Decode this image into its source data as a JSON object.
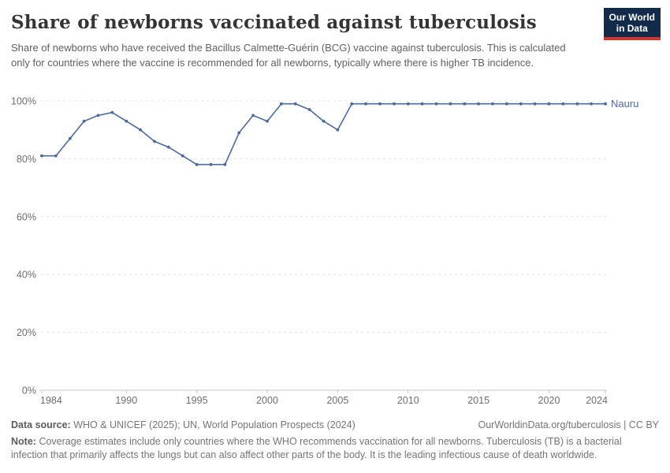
{
  "header": {
    "title": "Share of newborns vaccinated against tuberculosis",
    "subtitle": "Share of newborns who have received the Bacillus Calmette-Guérin (BCG) vaccine against tuberculosis. This is calculated only for countries where the vaccine is recommended for all newborns, typically where there is higher TB incidence.",
    "logo": {
      "line1": "Our World",
      "line2": "in Data",
      "bg_color": "#132b4a",
      "accent_color": "#d8352a"
    }
  },
  "chart_data": {
    "type": "line",
    "title": "Share of newborns vaccinated against tuberculosis",
    "xlabel": "",
    "ylabel": "",
    "xlim": [
      1984,
      2024
    ],
    "ylim": [
      0,
      100
    ],
    "grid": "horizontal-dashed",
    "legend_position": "end-of-line",
    "x_ticks": [
      {
        "value": 1984,
        "label": "1984"
      },
      {
        "value": 1990,
        "label": "1990"
      },
      {
        "value": 1995,
        "label": "1995"
      },
      {
        "value": 2000,
        "label": "2000"
      },
      {
        "value": 2005,
        "label": "2005"
      },
      {
        "value": 2010,
        "label": "2010"
      },
      {
        "value": 2015,
        "label": "2015"
      },
      {
        "value": 2020,
        "label": "2020"
      },
      {
        "value": 2024,
        "label": "2024"
      }
    ],
    "y_ticks": [
      {
        "value": 0,
        "label": "0%"
      },
      {
        "value": 20,
        "label": "20%"
      },
      {
        "value": 40,
        "label": "40%"
      },
      {
        "value": 60,
        "label": "60%"
      },
      {
        "value": 80,
        "label": "80%"
      },
      {
        "value": 100,
        "label": "100%"
      }
    ],
    "series": [
      {
        "name": "Nauru",
        "color": "#4c6a9c",
        "years": [
          1984,
          1985,
          1986,
          1987,
          1988,
          1989,
          1990,
          1991,
          1992,
          1993,
          1994,
          1995,
          1996,
          1997,
          1998,
          1999,
          2000,
          2001,
          2002,
          2003,
          2004,
          2005,
          2006,
          2007,
          2008,
          2009,
          2010,
          2011,
          2012,
          2013,
          2014,
          2015,
          2016,
          2017,
          2018,
          2019,
          2020,
          2021,
          2022,
          2023,
          2024
        ],
        "values": [
          81,
          81,
          87,
          93,
          95,
          96,
          93,
          90,
          86,
          84,
          81,
          78,
          78,
          78,
          89,
          95,
          93,
          99,
          99,
          97,
          93,
          90,
          99,
          99,
          99,
          99,
          99,
          99,
          99,
          99,
          99,
          99,
          99,
          99,
          99,
          99,
          99,
          99,
          99,
          99,
          99
        ]
      }
    ],
    "colors": {
      "gridline": "#e3e3e3",
      "axis_line": "#c8c8c8",
      "tick_label": "#6e6e6e"
    }
  },
  "footer": {
    "datasource_label": "Data source:",
    "datasource_text": "WHO & UNICEF (2025); UN, World Population Prospects (2024)",
    "attribution": "OurWorldinData.org/tuberculosis | CC BY",
    "note_label": "Note:",
    "note_text": "Coverage estimates include only countries where the WHO recommends vaccination for all newborns. Tuberculosis (TB) is a bacterial infection that primarily affects the lungs but can also affect other parts of the body. It is the leading infectious cause of death worldwide."
  }
}
